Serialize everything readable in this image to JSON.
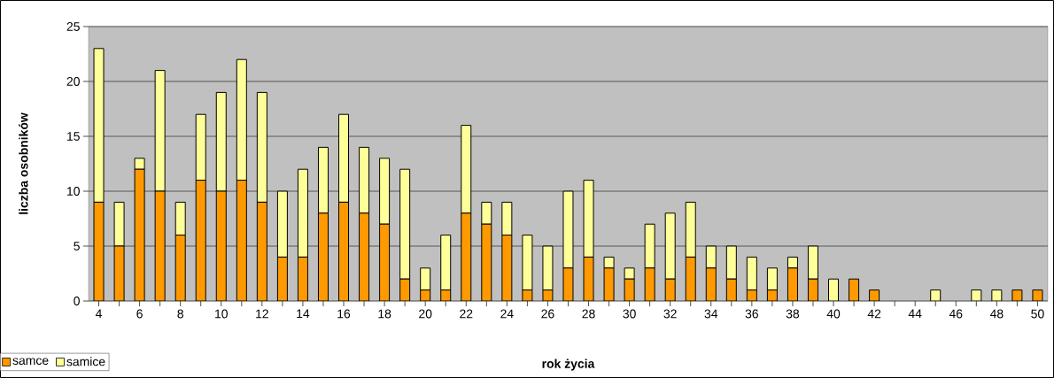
{
  "chart_data": {
    "type": "bar",
    "stacked": true,
    "xlabel": "rok życia",
    "ylabel": "liczba osobników",
    "categories": [
      "4",
      null,
      "6",
      null,
      "8",
      null,
      "10",
      null,
      "12",
      null,
      "14",
      null,
      "16",
      null,
      "18",
      null,
      "20",
      null,
      "22",
      null,
      "24",
      null,
      "26",
      null,
      "28",
      null,
      "30",
      null,
      "32",
      null,
      "34",
      null,
      "36",
      null,
      "38",
      null,
      "40",
      null,
      "42",
      null,
      "44",
      null,
      "46",
      null,
      "48",
      null,
      "50"
    ],
    "series": [
      {
        "name": "samce",
        "color": "#ff9900",
        "values": [
          9,
          5,
          12,
          10,
          6,
          11,
          10,
          11,
          9,
          4,
          4,
          8,
          9,
          8,
          7,
          2,
          1,
          1,
          8,
          7,
          6,
          1,
          1,
          3,
          4,
          3,
          2,
          3,
          2,
          4,
          3,
          2,
          1,
          1,
          3,
          2,
          0,
          2,
          1,
          0,
          0,
          0,
          0,
          0,
          0,
          1,
          1
        ]
      },
      {
        "name": "samice",
        "color": "#ffff99",
        "values": [
          14,
          4,
          1,
          11,
          3,
          6,
          9,
          11,
          10,
          6,
          8,
          6,
          8,
          6,
          6,
          10,
          2,
          5,
          8,
          2,
          3,
          5,
          4,
          7,
          7,
          1,
          1,
          4,
          6,
          5,
          2,
          3,
          3,
          2,
          1,
          3,
          2,
          0,
          0,
          0,
          0,
          1,
          0,
          1,
          1,
          0,
          0
        ]
      }
    ],
    "ylim": [
      0,
      25
    ],
    "yticks": [
      0,
      5,
      10,
      15,
      20,
      25
    ],
    "grid": "y",
    "legend": "bottom left"
  }
}
